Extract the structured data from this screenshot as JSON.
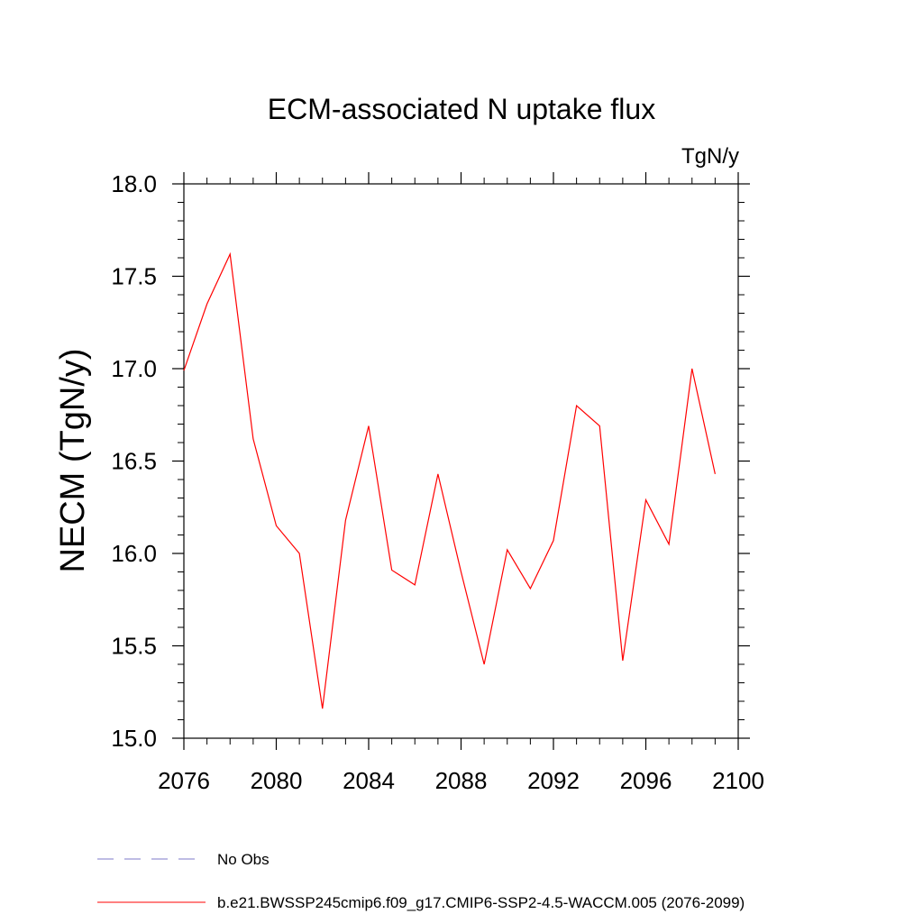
{
  "chart_data": {
    "type": "line",
    "title": "ECM-associated N uptake flux",
    "units_label": "TgN/y",
    "ylabel": "NECM  (TgN/y)",
    "xlabel": "",
    "xlim": [
      2076,
      2100
    ],
    "ylim": [
      15.0,
      18.0
    ],
    "x_ticks": [
      2076,
      2080,
      2084,
      2088,
      2092,
      2096,
      2100
    ],
    "y_ticks": [
      "15.0",
      "15.5",
      "16.0",
      "16.5",
      "17.0",
      "17.5",
      "18.0"
    ],
    "series": [
      {
        "name": "b.e21.BWSSP245cmip6.f09_g17.CMIP6-SSP2-4.5-WACCM.005 (2076-2099)",
        "color": "#ff0000",
        "x": [
          2076,
          2077,
          2078,
          2079,
          2080,
          2081,
          2082,
          2083,
          2084,
          2085,
          2086,
          2087,
          2088,
          2089,
          2090,
          2091,
          2092,
          2093,
          2094,
          2095,
          2096,
          2097,
          2098,
          2099
        ],
        "y": [
          16.99,
          17.35,
          17.62,
          16.62,
          16.15,
          16.0,
          15.16,
          16.18,
          16.69,
          15.91,
          15.83,
          16.43,
          15.9,
          15.4,
          16.02,
          15.81,
          16.07,
          16.8,
          16.69,
          15.42,
          16.29,
          16.05,
          17.0,
          16.43
        ]
      }
    ],
    "legend": {
      "placement": "bottom-left",
      "entries": [
        {
          "label": "No Obs",
          "color": "#7d78c8",
          "style": "dashed"
        },
        {
          "label": "b.e21.BWSSP245cmip6.f09_g17.CMIP6-SSP2-4.5-WACCM.005 (2076-2099)",
          "color": "#ff0000",
          "style": "solid"
        }
      ]
    },
    "grid": false
  }
}
